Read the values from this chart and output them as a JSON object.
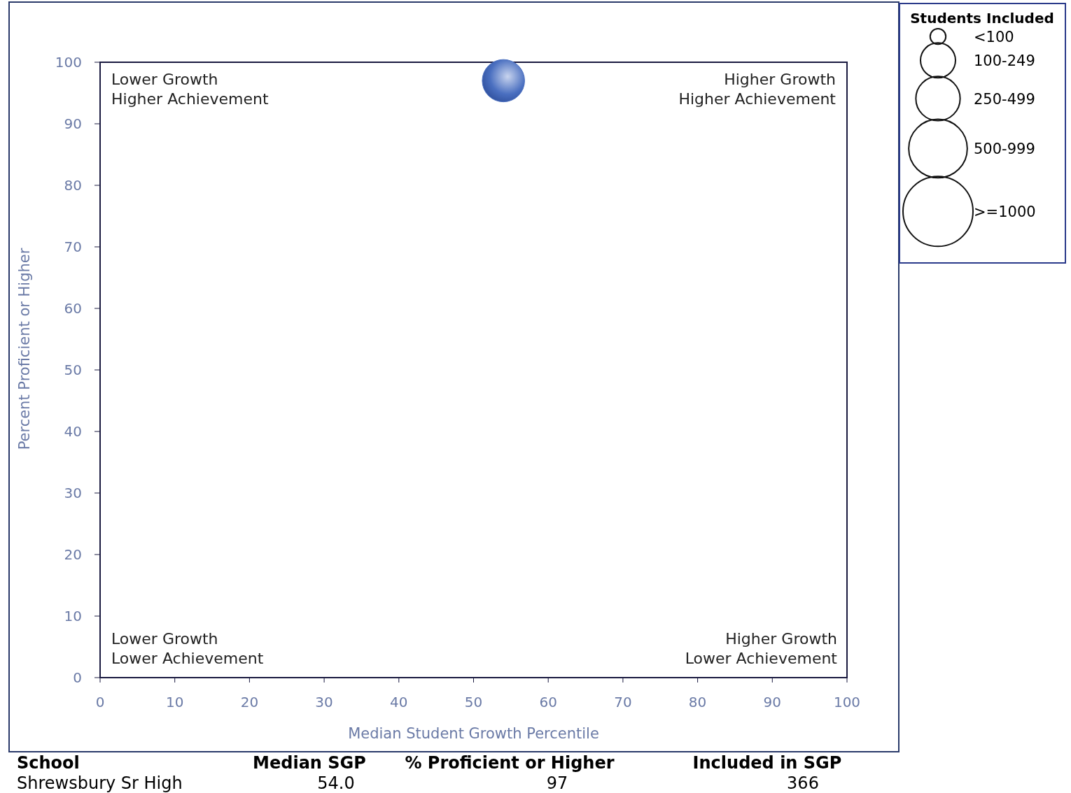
{
  "chart_data": {
    "type": "bubble",
    "xlabel": "Median Student Growth Percentile",
    "ylabel": "Percent Proficient or Higher",
    "legend_title": "Students Included",
    "x": [
      54
    ],
    "values": [
      97
    ],
    "sizes": [
      366
    ],
    "color": "#4a6fc0",
    "size_legend": [
      {
        "value": 50,
        "label": "<100"
      },
      {
        "value": 250,
        "label": "100-249"
      },
      {
        "value": 400,
        "label": "250-499"
      },
      {
        "value": 700,
        "label": "500-999"
      },
      {
        "value": 1000,
        "label": ">=1000"
      }
    ],
    "xlim": [
      0,
      100
    ],
    "xticks": [
      0,
      10,
      20,
      30,
      40,
      50,
      60,
      70,
      80,
      90,
      100
    ],
    "ylim": [
      0,
      100
    ],
    "yticks": [
      0,
      10,
      20,
      30,
      40,
      50,
      60,
      70,
      80,
      90,
      100
    ],
    "grid": false,
    "annotations": [
      "Lower Growth\nHigher Achievement",
      "Higher Growth\nHigher Achievement",
      "Lower Growth\nLower Achievement",
      "Higher Growth\nLower Achievement",
      "School",
      "Median SGP",
      "% Proficient or Higher",
      "Included in SGP",
      "Shrewsbury Sr High",
      "54.0",
      "97",
      "366"
    ]
  }
}
